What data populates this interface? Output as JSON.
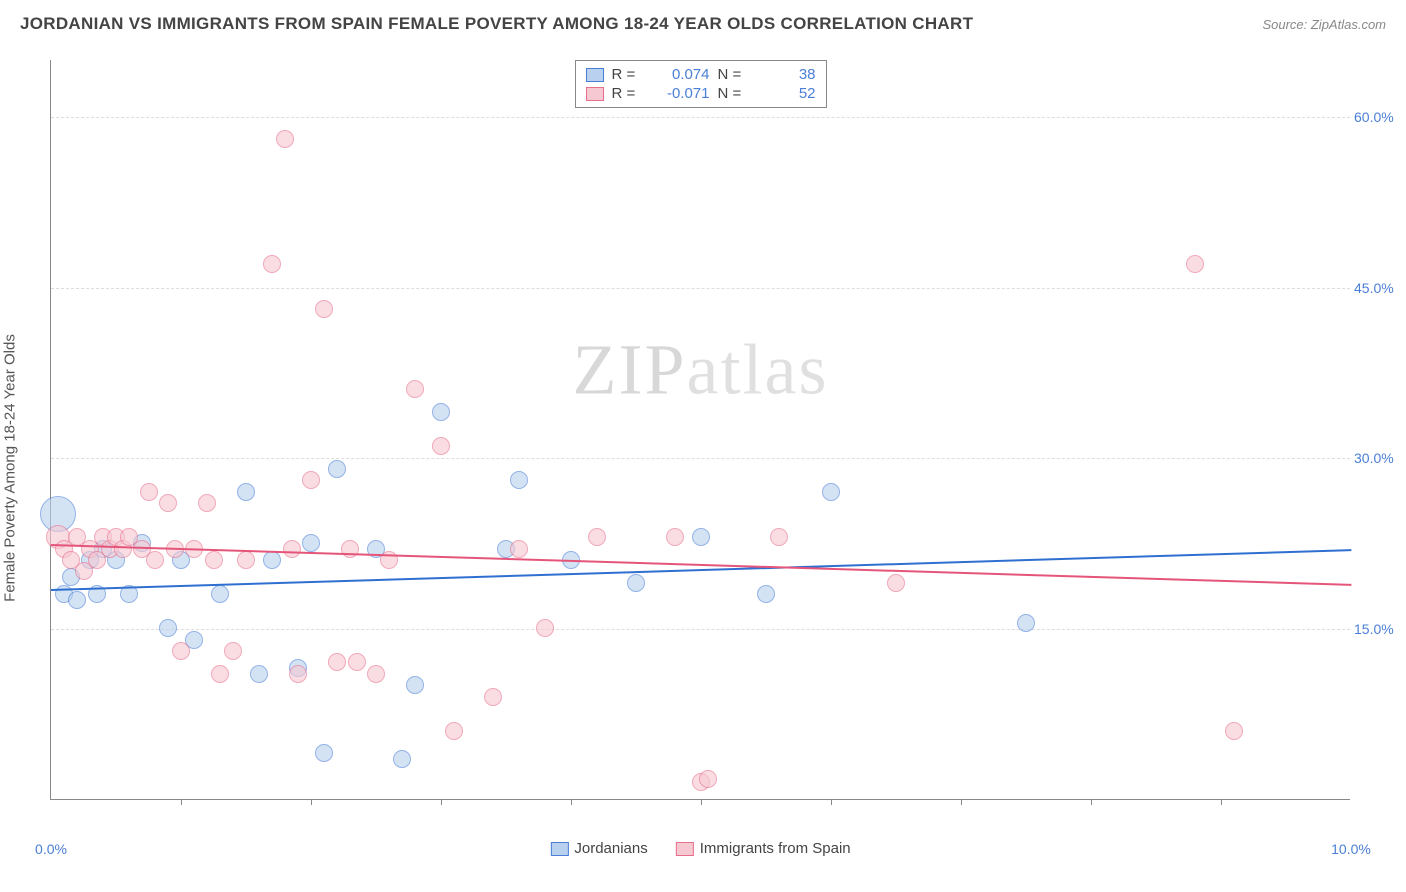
{
  "title": "JORDANIAN VS IMMIGRANTS FROM SPAIN FEMALE POVERTY AMONG 18-24 YEAR OLDS CORRELATION CHART",
  "source": "Source: ZipAtlas.com",
  "watermark_a": "ZIP",
  "watermark_b": "atlas",
  "chart": {
    "type": "scatter",
    "ylabel": "Female Poverty Among 18-24 Year Olds",
    "xlim": [
      0,
      10
    ],
    "ylim": [
      0,
      65
    ],
    "xticks_major": [
      0,
      10
    ],
    "xticks_minor": [
      1,
      2,
      3,
      4,
      5,
      6,
      7,
      8,
      9
    ],
    "yticks": [
      15,
      30,
      45,
      60
    ],
    "xtick_labels": {
      "0": "0.0%",
      "10": "10.0%"
    },
    "ytick_labels": {
      "15": "15.0%",
      "30": "30.0%",
      "45": "45.0%",
      "60": "60.0%"
    },
    "background_color": "#ffffff",
    "grid_color": "#dddddd",
    "axis_color": "#888888",
    "label_fontsize": 15,
    "tick_fontsize": 14,
    "tick_color": "#4a7fd6",
    "series": [
      {
        "name": "Jordanians",
        "fill": "#b9d1ee",
        "stroke": "#4a7fd6",
        "line_color": "#2f6fd0",
        "R": "0.074",
        "N": "38",
        "trend": {
          "y_at_x0": 18.5,
          "y_at_x10": 22.0
        },
        "points": [
          {
            "x": 0.05,
            "y": 25,
            "r": 18
          },
          {
            "x": 0.1,
            "y": 18,
            "r": 9
          },
          {
            "x": 0.15,
            "y": 19.5,
            "r": 9
          },
          {
            "x": 0.2,
            "y": 17.5,
            "r": 9
          },
          {
            "x": 0.3,
            "y": 21,
            "r": 9
          },
          {
            "x": 0.35,
            "y": 18,
            "r": 9
          },
          {
            "x": 0.4,
            "y": 22,
            "r": 9
          },
          {
            "x": 0.5,
            "y": 21,
            "r": 9
          },
          {
            "x": 0.6,
            "y": 18,
            "r": 9
          },
          {
            "x": 0.7,
            "y": 22.5,
            "r": 9
          },
          {
            "x": 0.9,
            "y": 15,
            "r": 9
          },
          {
            "x": 1.0,
            "y": 21,
            "r": 9
          },
          {
            "x": 1.1,
            "y": 14,
            "r": 9
          },
          {
            "x": 1.3,
            "y": 18,
            "r": 9
          },
          {
            "x": 1.5,
            "y": 27,
            "r": 9
          },
          {
            "x": 1.6,
            "y": 11,
            "r": 9
          },
          {
            "x": 1.7,
            "y": 21,
            "r": 9
          },
          {
            "x": 1.9,
            "y": 11.5,
            "r": 9
          },
          {
            "x": 2.0,
            "y": 22.5,
            "r": 9
          },
          {
            "x": 2.1,
            "y": 4,
            "r": 9
          },
          {
            "x": 2.2,
            "y": 29,
            "r": 9
          },
          {
            "x": 2.5,
            "y": 22,
            "r": 9
          },
          {
            "x": 2.7,
            "y": 3.5,
            "r": 9
          },
          {
            "x": 2.8,
            "y": 10,
            "r": 9
          },
          {
            "x": 3.0,
            "y": 34,
            "r": 9
          },
          {
            "x": 3.5,
            "y": 22,
            "r": 9
          },
          {
            "x": 3.6,
            "y": 28,
            "r": 9
          },
          {
            "x": 4.0,
            "y": 21,
            "r": 9
          },
          {
            "x": 4.5,
            "y": 19,
            "r": 9
          },
          {
            "x": 5.0,
            "y": 23,
            "r": 9
          },
          {
            "x": 5.5,
            "y": 18,
            "r": 9
          },
          {
            "x": 6.0,
            "y": 27,
            "r": 9
          },
          {
            "x": 7.5,
            "y": 15.5,
            "r": 9
          }
        ]
      },
      {
        "name": "Immigrants from Spain",
        "fill": "#f6c8d2",
        "stroke": "#e86f8b",
        "line_color": "#e5557a",
        "R": "-0.071",
        "N": "52",
        "trend": {
          "y_at_x0": 22.5,
          "y_at_x10": 19.0
        },
        "points": [
          {
            "x": 0.05,
            "y": 23,
            "r": 12
          },
          {
            "x": 0.1,
            "y": 22,
            "r": 9
          },
          {
            "x": 0.15,
            "y": 21,
            "r": 9
          },
          {
            "x": 0.2,
            "y": 23,
            "r": 9
          },
          {
            "x": 0.25,
            "y": 20,
            "r": 9
          },
          {
            "x": 0.3,
            "y": 22,
            "r": 9
          },
          {
            "x": 0.35,
            "y": 21,
            "r": 9
          },
          {
            "x": 0.4,
            "y": 23,
            "r": 9
          },
          {
            "x": 0.45,
            "y": 22,
            "r": 9
          },
          {
            "x": 0.5,
            "y": 23,
            "r": 9
          },
          {
            "x": 0.55,
            "y": 22,
            "r": 9
          },
          {
            "x": 0.6,
            "y": 23,
            "r": 9
          },
          {
            "x": 0.7,
            "y": 22,
            "r": 9
          },
          {
            "x": 0.75,
            "y": 27,
            "r": 9
          },
          {
            "x": 0.8,
            "y": 21,
            "r": 9
          },
          {
            "x": 0.9,
            "y": 26,
            "r": 9
          },
          {
            "x": 0.95,
            "y": 22,
            "r": 9
          },
          {
            "x": 1.0,
            "y": 13,
            "r": 9
          },
          {
            "x": 1.1,
            "y": 22,
            "r": 9
          },
          {
            "x": 1.2,
            "y": 26,
            "r": 9
          },
          {
            "x": 1.25,
            "y": 21,
            "r": 9
          },
          {
            "x": 1.3,
            "y": 11,
            "r": 9
          },
          {
            "x": 1.4,
            "y": 13,
            "r": 9
          },
          {
            "x": 1.5,
            "y": 21,
            "r": 9
          },
          {
            "x": 1.7,
            "y": 47,
            "r": 9
          },
          {
            "x": 1.8,
            "y": 58,
            "r": 9
          },
          {
            "x": 1.85,
            "y": 22,
            "r": 9
          },
          {
            "x": 1.9,
            "y": 11,
            "r": 9
          },
          {
            "x": 2.0,
            "y": 28,
            "r": 9
          },
          {
            "x": 2.1,
            "y": 43,
            "r": 9
          },
          {
            "x": 2.2,
            "y": 12,
            "r": 9
          },
          {
            "x": 2.3,
            "y": 22,
            "r": 9
          },
          {
            "x": 2.35,
            "y": 12,
            "r": 9
          },
          {
            "x": 2.5,
            "y": 11,
            "r": 9
          },
          {
            "x": 2.6,
            "y": 21,
            "r": 9
          },
          {
            "x": 2.8,
            "y": 36,
            "r": 9
          },
          {
            "x": 3.0,
            "y": 31,
            "r": 9
          },
          {
            "x": 3.1,
            "y": 6,
            "r": 9
          },
          {
            "x": 3.4,
            "y": 9,
            "r": 9
          },
          {
            "x": 3.6,
            "y": 22,
            "r": 9
          },
          {
            "x": 3.8,
            "y": 15,
            "r": 9
          },
          {
            "x": 4.2,
            "y": 23,
            "r": 9
          },
          {
            "x": 4.8,
            "y": 23,
            "r": 9
          },
          {
            "x": 5.0,
            "y": 1.5,
            "r": 9
          },
          {
            "x": 5.05,
            "y": 1.8,
            "r": 9
          },
          {
            "x": 5.6,
            "y": 23,
            "r": 9
          },
          {
            "x": 6.5,
            "y": 19,
            "r": 9
          },
          {
            "x": 8.8,
            "y": 47,
            "r": 9
          },
          {
            "x": 9.1,
            "y": 6,
            "r": 9
          }
        ]
      }
    ]
  }
}
